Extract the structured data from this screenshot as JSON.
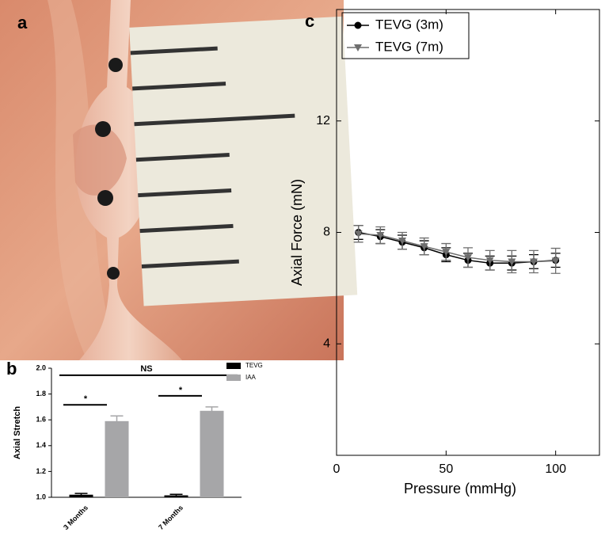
{
  "panel_labels": [
    "a",
    "b",
    "c"
  ],
  "chart_data": [
    {
      "type": "bar",
      "y_label": "Axial Stretch",
      "categories": [
        "3 Months",
        "7 Months"
      ],
      "series": [
        {
          "name": "TEVG",
          "color": "#000000",
          "values": [
            1.02,
            1.015
          ],
          "errors": [
            0.01,
            0.008
          ]
        },
        {
          "name": "IAA",
          "color": "#a6a6a8",
          "values": [
            1.59,
            1.67
          ],
          "errors": [
            0.04,
            0.03
          ]
        }
      ],
      "annotations": [
        "*",
        "*",
        "NS"
      ],
      "ylim": [
        1.0,
        2.0
      ],
      "yticks": [
        {
          "value": 1.0,
          "label": "1.0"
        },
        1.2,
        1.4,
        1.6,
        1.8,
        {
          "value": 2.0,
          "label": "2.0"
        }
      ]
    },
    {
      "type": "line",
      "x_label": "Pressure (mmHg)",
      "y_label": "Axial Force (mN)",
      "x": [
        10,
        20,
        30,
        40,
        50,
        60,
        70,
        80,
        90,
        100
      ],
      "series": [
        {
          "name": "TEVG (3m)",
          "color": "#000000",
          "marker": "circle",
          "values": [
            8.0,
            7.85,
            7.65,
            7.45,
            7.2,
            7.0,
            6.9,
            6.9,
            6.95,
            7.0
          ],
          "errors": [
            0.25,
            0.25,
            0.25,
            0.25,
            0.25,
            0.25,
            0.25,
            0.25,
            0.25,
            0.25
          ]
        },
        {
          "name": "TEVG (7m)",
          "color": "#6e6e6e",
          "marker": "triangle",
          "values": [
            7.95,
            7.9,
            7.7,
            7.5,
            7.3,
            7.1,
            7.0,
            6.95,
            6.95,
            6.98
          ],
          "errors": [
            0.3,
            0.3,
            0.3,
            0.3,
            0.3,
            0.35,
            0.35,
            0.4,
            0.4,
            0.45
          ]
        }
      ],
      "xlim": [
        0,
        120
      ],
      "ylim": [
        0,
        16
      ],
      "xticks": [
        0,
        50,
        100
      ],
      "yticks": [
        4,
        8,
        12
      ]
    }
  ]
}
